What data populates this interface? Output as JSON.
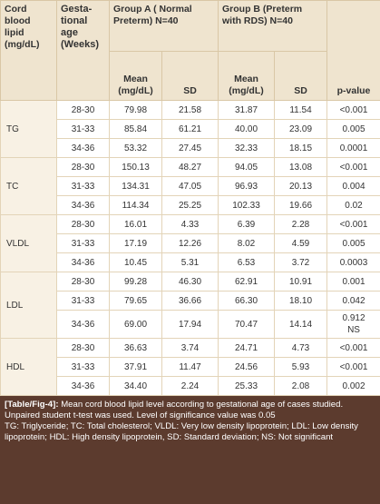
{
  "table": {
    "header": {
      "lipid": "Cord blood lipid (mg/dL)",
      "age": "Gesta-tional age (Weeks)",
      "group_a": "Group A ( Normal Preterm) N=40",
      "group_b": "Group B (Preterm with RDS) N=40",
      "mean_a": "Mean (mg/dL)",
      "sd_a": "SD",
      "mean_b": "Mean (mg/dL)",
      "sd_b": "SD",
      "p": "p-value"
    },
    "groups": [
      {
        "lipid": "TG",
        "rows": [
          [
            "28-30",
            "79.98",
            "21.58",
            "31.87",
            "11.54",
            "<0.001"
          ],
          [
            "31-33",
            "85.84",
            "61.21",
            "40.00",
            "23.09",
            "0.005"
          ],
          [
            "34-36",
            "53.32",
            "27.45",
            "32.33",
            "18.15",
            "0.0001"
          ]
        ]
      },
      {
        "lipid": "TC",
        "rows": [
          [
            "28-30",
            "150.13",
            "48.27",
            "94.05",
            "13.08",
            "<0.001"
          ],
          [
            "31-33",
            "134.31",
            "47.05",
            "96.93",
            "20.13",
            "0.004"
          ],
          [
            "34-36",
            "114.34",
            "25.25",
            "102.33",
            "19.66",
            "0.02"
          ]
        ]
      },
      {
        "lipid": "VLDL",
        "rows": [
          [
            "28-30",
            "16.01",
            "4.33",
            "6.39",
            "2.28",
            "<0.001"
          ],
          [
            "31-33",
            "17.19",
            "12.26",
            "8.02",
            "4.59",
            "0.005"
          ],
          [
            "34-36",
            "10.45",
            "5.31",
            "6.53",
            "3.72",
            "0.0003"
          ]
        ]
      },
      {
        "lipid": "LDL",
        "rows": [
          [
            "28-30",
            "99.28",
            "46.30",
            "62.91",
            "10.91",
            "0.001"
          ],
          [
            "31-33",
            "79.65",
            "36.66",
            "66.30",
            "18.10",
            "0.042"
          ],
          [
            "34-36",
            "69.00",
            "17.94",
            "70.47",
            "14.14",
            "0.912 NS"
          ]
        ]
      },
      {
        "lipid": "HDL",
        "rows": [
          [
            "28-30",
            "36.63",
            "3.74",
            "24.71",
            "4.73",
            "<0.001"
          ],
          [
            "31-33",
            "37.91",
            "11.47",
            "24.56",
            "5.93",
            "<0.001"
          ],
          [
            "34-36",
            "34.40",
            "2.24",
            "25.33",
            "2.08",
            "0.002"
          ]
        ]
      }
    ]
  },
  "caption": {
    "label": "[Table/Fig-4]:",
    "text": "Mean cord blood lipid level according to gestational age of cases studied.",
    "notes": [
      "Unpaired student t-test was used. Level of significance value was 0.05",
      "TG: Triglyceride; TC: Total cholesterol; VLDL: Very low density lipoprotein; LDL: Low density lipoprotein; HDL: High density lipoprotein, SD: Standard deviation; NS: Not significant"
    ]
  }
}
